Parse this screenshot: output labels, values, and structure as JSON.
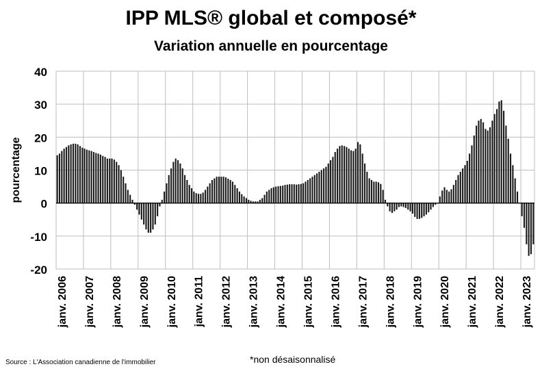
{
  "chart_data": {
    "type": "bar",
    "title": "IPP MLS® global et composé*",
    "subtitle": "Variation annuelle en pourcentage",
    "ylabel": "pourcentage",
    "xlabel": "",
    "ylim": [
      -20,
      40
    ],
    "yticks": [
      40,
      30,
      20,
      10,
      0,
      -10,
      -20
    ],
    "grid": true,
    "x_start": "2006-01",
    "x_end": "2023-05",
    "tick_labels": [
      "janv. 2006",
      "janv. 2007",
      "janv. 2008",
      "janv. 2009",
      "janv. 2010",
      "janv. 2011",
      "janv. 2012",
      "janv. 2013",
      "janv. 2014",
      "janv. 2015",
      "janv. 2016",
      "janv. 2017",
      "janv. 2018",
      "janv. 2019",
      "janv. 2020",
      "janv. 2021",
      "janv. 2022",
      "janv. 2023"
    ],
    "values": [
      14.5,
      15.0,
      15.8,
      16.5,
      17.0,
      17.5,
      17.8,
      18.0,
      18.0,
      17.8,
      17.3,
      16.8,
      16.5,
      16.2,
      16.0,
      15.8,
      15.5,
      15.2,
      15.0,
      14.7,
      14.3,
      14.0,
      13.5,
      13.5,
      13.5,
      13.2,
      12.5,
      11.5,
      10.0,
      8.0,
      6.0,
      4.0,
      2.5,
      1.0,
      -0.5,
      -2.0,
      -3.5,
      -5.0,
      -6.5,
      -8.0,
      -9.0,
      -9.0,
      -8.0,
      -6.5,
      -4.0,
      -1.0,
      1.0,
      3.5,
      6.0,
      8.5,
      10.5,
      12.5,
      13.5,
      13.0,
      12.0,
      10.5,
      8.5,
      7.0,
      5.5,
      4.5,
      3.5,
      3.0,
      2.8,
      2.8,
      3.2,
      4.0,
      5.0,
      6.0,
      7.0,
      7.5,
      8.0,
      8.0,
      8.0,
      8.0,
      7.8,
      7.4,
      7.0,
      6.5,
      5.5,
      4.5,
      3.5,
      2.7,
      2.0,
      1.5,
      1.0,
      0.7,
      0.5,
      0.5,
      0.5,
      1.0,
      1.5,
      2.5,
      3.5,
      4.0,
      4.5,
      4.8,
      5.0,
      5.1,
      5.2,
      5.3,
      5.5,
      5.6,
      5.7,
      5.7,
      5.7,
      5.6,
      5.7,
      5.8,
      6.0,
      6.5,
      7.0,
      7.5,
      8.0,
      8.5,
      9.0,
      9.5,
      10.0,
      10.5,
      11.0,
      12.0,
      13.0,
      14.0,
      15.5,
      16.5,
      17.3,
      17.5,
      17.3,
      17.0,
      16.5,
      16.0,
      15.8,
      16.5,
      18.5,
      17.8,
      15.0,
      12.0,
      9.5,
      7.5,
      7.0,
      6.5,
      6.5,
      6.3,
      5.8,
      4.0,
      1.0,
      -1.0,
      -2.5,
      -3.0,
      -2.5,
      -2.0,
      -1.2,
      -1.0,
      -1.2,
      -1.5,
      -2.0,
      -2.5,
      -3.2,
      -4.2,
      -4.8,
      -4.8,
      -4.5,
      -4.0,
      -3.5,
      -2.8,
      -2.0,
      -1.2,
      -0.5,
      0.0,
      2.0,
      3.8,
      4.8,
      4.0,
      3.5,
      4.2,
      5.5,
      7.0,
      8.5,
      9.5,
      10.5,
      11.5,
      12.8,
      15.0,
      17.5,
      20.5,
      23.5,
      25.0,
      25.5,
      24.5,
      22.5,
      22.0,
      23.0,
      25.0,
      27.0,
      28.5,
      30.8,
      31.2,
      28.0,
      23.5,
      19.5,
      15.0,
      11.5,
      7.5,
      3.5,
      0.0,
      -4.0,
      -7.5,
      -12.5,
      -16.0,
      -15.5,
      -12.5
    ],
    "annotation": "*non désaisonnalisé",
    "source": "Source : L'Association canadienne de l'immobilier"
  }
}
